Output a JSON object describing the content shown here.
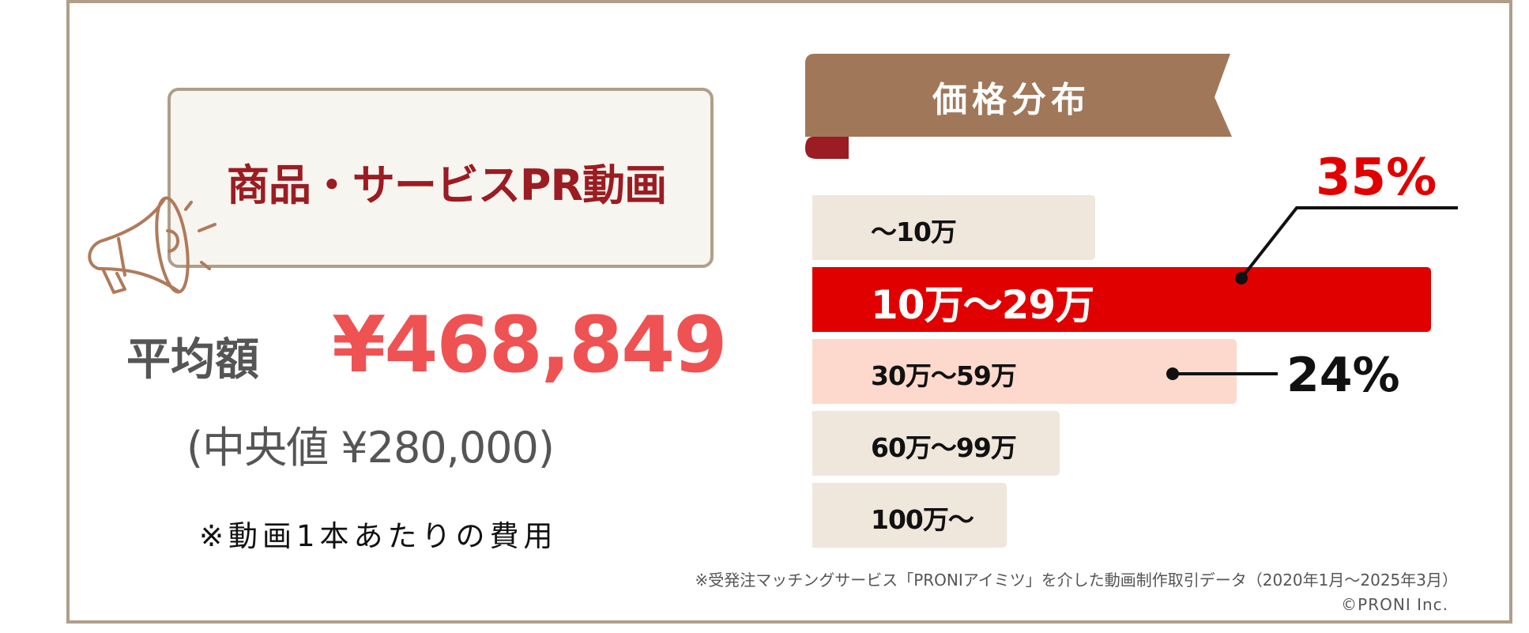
{
  "title": "商品・サービスPR動画",
  "average": {
    "label": "平均額",
    "value": "¥468,849"
  },
  "median": "(中央値 ¥280,000)",
  "note": "※動画1本あたりの費用",
  "colors": {
    "frame": "#b09e8a",
    "title": "#9b1c22",
    "average": "#ee5253",
    "banner": "#a07759",
    "highlight": "#e00000",
    "second": "#fcd9cc",
    "other": "#efe6dc"
  },
  "chart_data": {
    "type": "bar",
    "orientation": "horizontal",
    "title": "価格分布",
    "categories": [
      "〜10万",
      "10万〜29万",
      "30万〜59万",
      "60万〜99万",
      "100万〜"
    ],
    "values": [
      16,
      35,
      24,
      14,
      11
    ],
    "unit": "%",
    "data_labels": [
      {
        "category": "10万〜29万",
        "text": "35%"
      },
      {
        "category": "30万〜59万",
        "text": "24%"
      }
    ],
    "grid": false
  },
  "footnote": "※受発注マッチングサービス「PRONIアイミツ」を介した動画制作取引データ（2020年1月〜2025年3月）",
  "copyright": "©PRONI Inc."
}
